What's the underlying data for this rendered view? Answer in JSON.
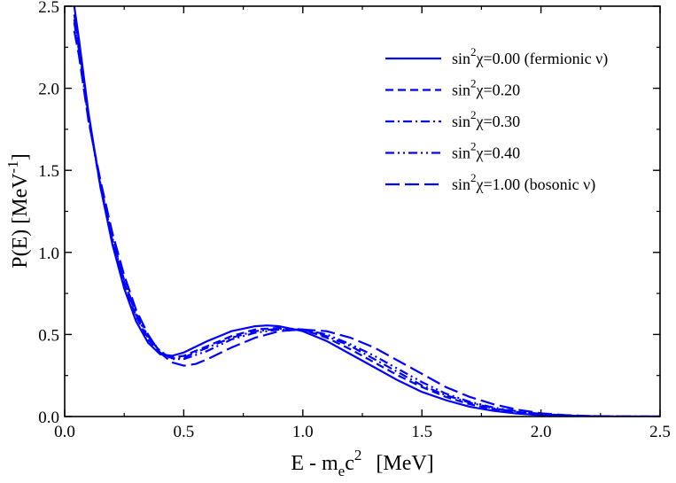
{
  "chart_data": {
    "type": "line",
    "title": "",
    "xlabel": {
      "main": "E - m",
      "sub": "e",
      "after": "c",
      "sup": "2",
      "unit": "[MeV]"
    },
    "ylabel": {
      "main": "P(E) [MeV",
      "sup": "-1",
      "close": "]"
    },
    "xlim": [
      0.0,
      2.5
    ],
    "ylim": [
      0.0,
      2.5
    ],
    "xticks": [
      "0.0",
      "0.5",
      "1.0",
      "1.5",
      "2.0",
      "2.5"
    ],
    "yticks": [
      "0.0",
      "0.5",
      "1.0",
      "1.5",
      "2.0",
      "2.5"
    ],
    "grid": false,
    "legend_position": "top-right",
    "series_color": "#0000ff",
    "series": [
      {
        "name": "sin²χ=0.00 (fermionic ν)",
        "legend": {
          "pre": "sin",
          "sup": "2",
          "post": "χ=0.00 (fermionic ν)"
        },
        "dash": "solid",
        "x": [
          0.04,
          0.06,
          0.1,
          0.15,
          0.2,
          0.25,
          0.3,
          0.35,
          0.4,
          0.45,
          0.5,
          0.6,
          0.7,
          0.8,
          0.85,
          0.9,
          1.0,
          1.1,
          1.2,
          1.3,
          1.4,
          1.5,
          1.6,
          1.7,
          1.8,
          1.9,
          2.0,
          2.1,
          2.2,
          2.3,
          2.4,
          2.5
        ],
        "y": [
          2.5,
          2.3,
          1.85,
          1.4,
          1.05,
          0.78,
          0.58,
          0.45,
          0.38,
          0.37,
          0.39,
          0.46,
          0.52,
          0.55,
          0.555,
          0.55,
          0.52,
          0.46,
          0.38,
          0.3,
          0.22,
          0.15,
          0.1,
          0.06,
          0.035,
          0.018,
          0.008,
          0.003,
          0.001,
          0.0,
          0.0,
          0.0
        ]
      },
      {
        "name": "sin²χ=0.20",
        "legend": {
          "pre": "sin",
          "sup": "2",
          "post": "χ=0.20"
        },
        "dash": "dashed",
        "x": [
          0.04,
          0.06,
          0.1,
          0.15,
          0.2,
          0.25,
          0.3,
          0.35,
          0.4,
          0.45,
          0.5,
          0.6,
          0.7,
          0.8,
          0.9,
          1.0,
          1.1,
          1.2,
          1.3,
          1.4,
          1.5,
          1.6,
          1.7,
          1.8,
          1.9,
          2.0,
          2.1,
          2.2,
          2.3,
          2.4,
          2.5
        ],
        "y": [
          2.45,
          2.27,
          1.83,
          1.4,
          1.07,
          0.8,
          0.61,
          0.47,
          0.39,
          0.36,
          0.37,
          0.43,
          0.49,
          0.53,
          0.54,
          0.53,
          0.48,
          0.41,
          0.33,
          0.25,
          0.18,
          0.12,
          0.075,
          0.045,
          0.024,
          0.012,
          0.005,
          0.002,
          0.0,
          0.0,
          0.0
        ]
      },
      {
        "name": "sin²χ=0.30",
        "legend": {
          "pre": "sin",
          "sup": "2",
          "post": "χ=0.30"
        },
        "dash": "dashdot",
        "x": [
          0.04,
          0.06,
          0.1,
          0.15,
          0.2,
          0.25,
          0.3,
          0.35,
          0.4,
          0.45,
          0.5,
          0.6,
          0.7,
          0.8,
          0.9,
          1.0,
          1.1,
          1.2,
          1.3,
          1.4,
          1.5,
          1.6,
          1.7,
          1.8,
          1.9,
          2.0,
          2.1,
          2.2,
          2.3,
          2.4,
          2.5
        ],
        "y": [
          2.42,
          2.25,
          1.82,
          1.41,
          1.08,
          0.82,
          0.62,
          0.48,
          0.4,
          0.355,
          0.36,
          0.42,
          0.48,
          0.52,
          0.535,
          0.53,
          0.49,
          0.43,
          0.35,
          0.27,
          0.19,
          0.13,
          0.085,
          0.05,
          0.028,
          0.014,
          0.006,
          0.002,
          0.0,
          0.0,
          0.0
        ]
      },
      {
        "name": "sin²χ=0.40",
        "legend": {
          "pre": "sin",
          "sup": "2",
          "post": "χ=0.40"
        },
        "dash": "dashdotdot",
        "x": [
          0.04,
          0.06,
          0.1,
          0.15,
          0.2,
          0.25,
          0.3,
          0.35,
          0.4,
          0.45,
          0.5,
          0.6,
          0.7,
          0.8,
          0.9,
          1.0,
          1.1,
          1.2,
          1.3,
          1.4,
          1.5,
          1.6,
          1.7,
          1.8,
          1.9,
          2.0,
          2.1,
          2.2,
          2.3,
          2.4,
          2.5
        ],
        "y": [
          2.4,
          2.23,
          1.81,
          1.42,
          1.09,
          0.83,
          0.63,
          0.49,
          0.4,
          0.35,
          0.35,
          0.4,
          0.47,
          0.51,
          0.53,
          0.53,
          0.5,
          0.44,
          0.37,
          0.29,
          0.21,
          0.14,
          0.09,
          0.055,
          0.032,
          0.016,
          0.007,
          0.003,
          0.001,
          0.0,
          0.0
        ]
      },
      {
        "name": "sin²χ=1.00 (bosonic ν)",
        "legend": {
          "pre": "sin",
          "sup": "2",
          "post": "χ=1.00 (bosonic ν)"
        },
        "dash": "longdash",
        "x": [
          0.04,
          0.06,
          0.1,
          0.15,
          0.2,
          0.25,
          0.3,
          0.35,
          0.4,
          0.45,
          0.5,
          0.55,
          0.6,
          0.7,
          0.8,
          0.9,
          1.0,
          1.1,
          1.2,
          1.3,
          1.4,
          1.5,
          1.6,
          1.7,
          1.8,
          1.9,
          2.0,
          2.1,
          2.2,
          2.3,
          2.4,
          2.5
        ],
        "y": [
          2.35,
          2.2,
          1.8,
          1.44,
          1.12,
          0.86,
          0.65,
          0.5,
          0.39,
          0.33,
          0.31,
          0.32,
          0.35,
          0.42,
          0.48,
          0.52,
          0.53,
          0.52,
          0.48,
          0.42,
          0.34,
          0.26,
          0.18,
          0.12,
          0.075,
          0.042,
          0.02,
          0.009,
          0.003,
          0.001,
          0.0,
          0.0
        ]
      }
    ]
  }
}
